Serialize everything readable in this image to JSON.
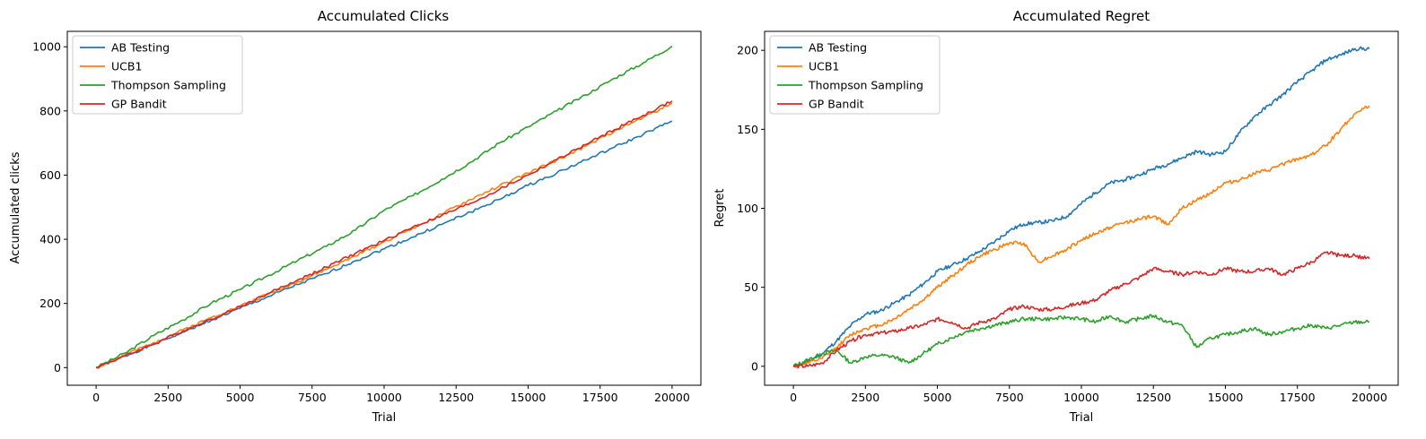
{
  "colors": {
    "ab": "#1f77b4",
    "ucb": "#ff7f0e",
    "ts": "#2ca02c",
    "gp": "#d62728"
  },
  "chart_data": [
    {
      "type": "line",
      "title": "Accumulated Clicks",
      "xlabel": "Trial",
      "ylabel": "Accumulated clicks",
      "xlim": [
        -1000,
        21000
      ],
      "ylim": [
        -55,
        1048
      ],
      "xticks": [
        0,
        2500,
        5000,
        7500,
        10000,
        12500,
        15000,
        17500,
        20000
      ],
      "yticks": [
        0,
        200,
        400,
        600,
        800,
        1000
      ],
      "legend": "top-left",
      "grid": false,
      "series": [
        {
          "name": "AB Testing",
          "color": "#1f77b4",
          "x": [
            0,
            1000,
            2000,
            3000,
            4000,
            5000,
            6000,
            7000,
            8000,
            9000,
            10000,
            11000,
            12000,
            13000,
            14000,
            15000,
            16000,
            17000,
            18000,
            19000,
            20000
          ],
          "y": [
            0,
            36,
            72,
            110,
            148,
            185,
            222,
            259,
            293,
            333,
            370,
            407,
            446,
            485,
            524,
            568,
            607,
            647,
            687,
            727,
            768
          ]
        },
        {
          "name": "UCB1",
          "color": "#ff7f0e",
          "x": [
            0,
            1000,
            2000,
            3000,
            4000,
            5000,
            6000,
            7000,
            8000,
            9000,
            10000,
            11000,
            12000,
            13000,
            14000,
            15000,
            16000,
            17000,
            18000,
            19000,
            20000
          ],
          "y": [
            0,
            39,
            78,
            117,
            156,
            192,
            230,
            268,
            306,
            348,
            392,
            435,
            478,
            524,
            566,
            606,
            647,
            690,
            737,
            780,
            824
          ]
        },
        {
          "name": "Thompson Sampling",
          "color": "#2ca02c",
          "x": [
            0,
            1000,
            2000,
            3000,
            4000,
            5000,
            6000,
            7000,
            8000,
            9000,
            10000,
            11000,
            12000,
            13000,
            14000,
            15000,
            16000,
            17000,
            18000,
            19000,
            20000
          ],
          "y": [
            0,
            45,
            100,
            148,
            201,
            243,
            288,
            334,
            378,
            428,
            490,
            536,
            587,
            640,
            700,
            750,
            800,
            850,
            902,
            950,
            1002
          ]
        },
        {
          "name": "GP Bandit",
          "color": "#d62728",
          "x": [
            0,
            1000,
            2000,
            3000,
            4000,
            5000,
            6000,
            7000,
            8000,
            9000,
            10000,
            11000,
            12000,
            13000,
            14000,
            15000,
            16000,
            17000,
            18000,
            19000,
            20000
          ],
          "y": [
            0,
            36,
            74,
            113,
            151,
            190,
            232,
            273,
            313,
            356,
            396,
            438,
            474,
            512,
            555,
            600,
            648,
            695,
            742,
            786,
            831
          ]
        }
      ]
    },
    {
      "type": "line",
      "title": "Accumulated Regret",
      "xlabel": "Trial",
      "ylabel": "Regret",
      "xlim": [
        -1000,
        21000
      ],
      "ylim": [
        -12,
        212
      ],
      "xticks": [
        0,
        2500,
        5000,
        7500,
        10000,
        12500,
        15000,
        17500,
        20000
      ],
      "yticks": [
        0,
        50,
        100,
        150,
        200
      ],
      "legend": "top-left",
      "grid": false,
      "series": [
        {
          "name": "AB Testing",
          "color": "#1f77b4",
          "x": [
            0,
            500,
            1000,
            1500,
            2000,
            2500,
            3000,
            3500,
            4000,
            4500,
            5000,
            5500,
            6000,
            6500,
            7000,
            7500,
            8000,
            8500,
            9000,
            9500,
            10000,
            10500,
            11000,
            11500,
            12000,
            12500,
            13000,
            13500,
            14000,
            14500,
            15000,
            15500,
            16000,
            16500,
            17000,
            17500,
            18000,
            18500,
            19000,
            19500,
            20000
          ],
          "y": [
            0,
            3,
            8,
            16,
            26,
            33,
            35,
            40,
            45,
            52,
            60,
            64,
            68,
            73,
            79,
            86,
            90,
            91,
            92,
            95,
            103,
            110,
            116,
            118,
            121,
            125,
            128,
            132,
            136,
            134,
            136,
            148,
            158,
            165,
            172,
            180,
            187,
            194,
            197,
            201,
            201
          ]
        },
        {
          "name": "UCB1",
          "color": "#ff7f0e",
          "x": [
            0,
            500,
            1000,
            1500,
            2000,
            2500,
            3000,
            3500,
            4000,
            4500,
            5000,
            5500,
            6000,
            6500,
            7000,
            7500,
            8000,
            8500,
            9000,
            9500,
            10000,
            10500,
            11000,
            11500,
            12000,
            12500,
            13000,
            13500,
            14000,
            14500,
            15000,
            15500,
            16000,
            16500,
            17000,
            17500,
            18000,
            18500,
            19000,
            19500,
            20000
          ],
          "y": [
            0,
            2,
            5,
            12,
            20,
            24,
            26,
            30,
            36,
            42,
            50,
            57,
            64,
            70,
            74,
            78,
            78,
            66,
            70,
            74,
            80,
            84,
            88,
            91,
            93,
            95,
            90,
            100,
            105,
            110,
            116,
            118,
            122,
            124,
            128,
            131,
            134,
            140,
            150,
            160,
            165
          ]
        },
        {
          "name": "Thompson Sampling",
          "color": "#2ca02c",
          "x": [
            0,
            500,
            1000,
            1500,
            2000,
            2500,
            3000,
            3500,
            4000,
            4500,
            5000,
            5500,
            6000,
            6500,
            7000,
            7500,
            8000,
            8500,
            9000,
            9500,
            10000,
            10500,
            11000,
            11500,
            12000,
            12500,
            13000,
            13500,
            14000,
            14500,
            15000,
            15500,
            16000,
            16500,
            17000,
            17500,
            18000,
            18500,
            19000,
            19500,
            20000
          ],
          "y": [
            0,
            4,
            8,
            10,
            2,
            6,
            7,
            6,
            2,
            8,
            14,
            18,
            22,
            24,
            26,
            28,
            30,
            30,
            30,
            31,
            30,
            28,
            32,
            28,
            30,
            32,
            28,
            26,
            12,
            18,
            20,
            22,
            24,
            20,
            22,
            24,
            26,
            24,
            26,
            28,
            28
          ]
        },
        {
          "name": "GP Bandit",
          "color": "#d62728",
          "x": [
            0,
            500,
            1000,
            1500,
            2000,
            2500,
            3000,
            3500,
            4000,
            4500,
            5000,
            5500,
            6000,
            6500,
            7000,
            7500,
            8000,
            8500,
            9000,
            9500,
            10000,
            10500,
            11000,
            11500,
            12000,
            12500,
            13000,
            13500,
            14000,
            14500,
            15000,
            15500,
            16000,
            16500,
            17000,
            17500,
            18000,
            18500,
            19000,
            19500,
            20000
          ],
          "y": [
            0,
            0,
            2,
            10,
            16,
            20,
            21,
            22,
            24,
            26,
            30,
            28,
            24,
            28,
            30,
            36,
            38,
            36,
            36,
            38,
            40,
            42,
            48,
            52,
            56,
            62,
            60,
            58,
            60,
            58,
            62,
            60,
            60,
            62,
            58,
            62,
            66,
            72,
            70,
            70,
            68
          ]
        }
      ]
    }
  ]
}
